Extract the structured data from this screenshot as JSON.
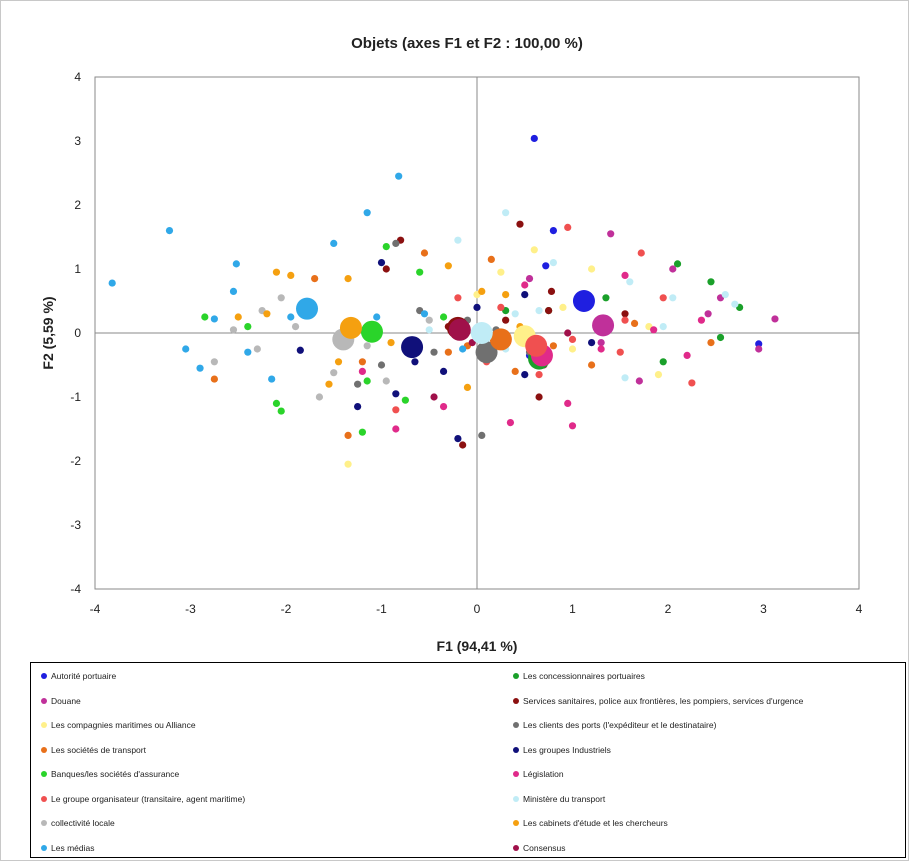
{
  "chart_data": {
    "type": "scatter",
    "title": "Objets (axes F1 et F2 : 100,00 %)",
    "xlabel": "F1 (94,41 %)",
    "ylabel": "F2 (5,59 %)",
    "xlim": [
      -4,
      4
    ],
    "ylim": [
      -4,
      4
    ],
    "xticks": [
      "-4",
      "-3",
      "-2",
      "-1",
      "0",
      "1",
      "2",
      "3",
      "4"
    ],
    "yticks": [
      "4",
      "3",
      "2",
      "1",
      "0",
      "-1",
      "-2",
      "-3",
      "-4"
    ],
    "grid": false,
    "legend_position": "bottom",
    "series": [
      {
        "name": "Autorité portuaire",
        "color": "#1f1fe0",
        "centroid": [
          1.12,
          0.5
        ],
        "points": [
          [
            0.6,
            3.04
          ],
          [
            0.8,
            1.6
          ],
          [
            0.72,
            1.05
          ],
          [
            2.95,
            -0.17
          ],
          [
            0.55,
            -0.35
          ]
        ]
      },
      {
        "name": "Les concessionnaires portuaires",
        "color": "#1aa02a",
        "centroid": [
          0.65,
          -0.4
        ],
        "points": [
          [
            2.1,
            1.08
          ],
          [
            2.45,
            0.8
          ],
          [
            1.95,
            -0.45
          ],
          [
            2.55,
            -0.07
          ],
          [
            1.35,
            0.55
          ],
          [
            0.65,
            -0.45
          ],
          [
            0.3,
            0.35
          ],
          [
            2.75,
            0.4
          ],
          [
            0.75,
            0.35
          ]
        ]
      },
      {
        "name": "Douane",
        "color": "#c0309a",
        "centroid": [
          1.32,
          0.12
        ],
        "points": [
          [
            3.12,
            0.22
          ],
          [
            2.95,
            -0.25
          ],
          [
            1.4,
            1.55
          ],
          [
            2.55,
            0.55
          ],
          [
            1.3,
            -0.15
          ],
          [
            2.42,
            0.3
          ],
          [
            0.55,
            0.85
          ],
          [
            2.05,
            1.0
          ],
          [
            1.7,
            -0.75
          ]
        ]
      },
      {
        "name": "Services sanitaires, police aux frontières, les pompiers, services d'urgence",
        "color": "#8b1010",
        "centroid": [
          -0.2,
          0.08
        ],
        "points": [
          [
            -0.8,
            1.45
          ],
          [
            0.45,
            1.7
          ],
          [
            -0.95,
            1.0
          ],
          [
            -0.3,
            0.1
          ],
          [
            0.78,
            0.65
          ],
          [
            0.3,
            0.2
          ],
          [
            -0.15,
            -1.75
          ],
          [
            0.65,
            -1.0
          ],
          [
            0.75,
            0.35
          ],
          [
            1.55,
            0.3
          ]
        ]
      },
      {
        "name": "Les compagnies maritimes ou Alliance",
        "color": "#fff08a",
        "centroid": [
          0.5,
          -0.05
        ],
        "points": [
          [
            -1.35,
            -2.05
          ],
          [
            0.6,
            1.3
          ],
          [
            0.25,
            0.95
          ],
          [
            1.2,
            1.0
          ],
          [
            1.8,
            0.1
          ],
          [
            0.9,
            0.4
          ],
          [
            1.0,
            -0.25
          ],
          [
            1.9,
            -0.65
          ],
          [
            0.0,
            0.6
          ]
        ]
      },
      {
        "name": "Les clients des ports (l'expéditeur et le destinataire)",
        "color": "#707070",
        "centroid": [
          0.1,
          -0.3
        ],
        "points": [
          [
            -0.85,
            1.4
          ],
          [
            0.05,
            -1.6
          ],
          [
            -1.25,
            -0.8
          ],
          [
            -0.45,
            -0.3
          ],
          [
            0.2,
            0.05
          ],
          [
            -0.1,
            0.2
          ],
          [
            -1.0,
            -0.5
          ],
          [
            0.55,
            -0.3
          ],
          [
            -0.6,
            0.35
          ]
        ]
      },
      {
        "name": "Les sociétés de transport",
        "color": "#e8701a",
        "centroid": [
          0.25,
          -0.1
        ],
        "points": [
          [
            -2.75,
            -0.72
          ],
          [
            -1.35,
            -1.6
          ],
          [
            -1.2,
            -0.45
          ],
          [
            -0.55,
            1.25
          ],
          [
            0.15,
            1.15
          ],
          [
            0.4,
            -0.6
          ],
          [
            1.2,
            -0.5
          ],
          [
            -0.3,
            -0.3
          ],
          [
            0.8,
            -0.2
          ],
          [
            2.45,
            -0.15
          ],
          [
            -1.7,
            0.85
          ],
          [
            -0.1,
            -0.2
          ],
          [
            1.65,
            0.15
          ]
        ]
      },
      {
        "name": "Les groupes Industriels",
        "color": "#10107a",
        "centroid": [
          -0.68,
          -0.22
        ],
        "points": [
          [
            -1.0,
            1.1
          ],
          [
            -0.2,
            -1.65
          ],
          [
            -0.65,
            -0.45
          ],
          [
            -0.35,
            -0.6
          ],
          [
            0.5,
            0.6
          ],
          [
            0.5,
            -0.65
          ],
          [
            -1.85,
            -0.27
          ],
          [
            -0.85,
            -0.95
          ],
          [
            0.0,
            0.4
          ],
          [
            1.2,
            -0.15
          ],
          [
            -1.25,
            -1.15
          ]
        ]
      },
      {
        "name": "Banques/les sociétés d'assurance",
        "color": "#2ad42a",
        "centroid": [
          -1.1,
          0.02
        ],
        "points": [
          [
            -0.95,
            1.35
          ],
          [
            -2.05,
            -1.22
          ],
          [
            -2.1,
            -1.1
          ],
          [
            -0.6,
            0.95
          ],
          [
            -1.75,
            0.35
          ],
          [
            -1.15,
            -0.75
          ],
          [
            -0.75,
            -1.05
          ],
          [
            -2.4,
            0.1
          ],
          [
            -1.2,
            -1.55
          ],
          [
            -0.35,
            0.25
          ],
          [
            -2.85,
            0.25
          ]
        ]
      },
      {
        "name": "Législation",
        "color": "#e02a8a",
        "centroid": [
          0.68,
          -0.35
        ],
        "points": [
          [
            1.3,
            -0.25
          ],
          [
            0.95,
            -1.1
          ],
          [
            2.2,
            -0.35
          ],
          [
            1.55,
            0.9
          ],
          [
            0.5,
            0.75
          ],
          [
            -0.35,
            -1.15
          ],
          [
            0.35,
            -1.4
          ],
          [
            -0.85,
            -1.5
          ],
          [
            1.0,
            -1.45
          ],
          [
            2.35,
            0.2
          ],
          [
            1.85,
            0.05
          ],
          [
            -1.2,
            -0.6
          ]
        ]
      },
      {
        "name": "Le groupe organisateur (transitaire, agent maritime)",
        "color": "#f05050",
        "centroid": [
          0.62,
          -0.2
        ],
        "points": [
          [
            0.95,
            1.65
          ],
          [
            1.72,
            1.25
          ],
          [
            1.0,
            -0.1
          ],
          [
            -0.2,
            0.55
          ],
          [
            2.25,
            -0.78
          ],
          [
            1.55,
            0.2
          ],
          [
            0.65,
            -0.65
          ],
          [
            0.1,
            -0.45
          ],
          [
            -0.85,
            -1.2
          ],
          [
            1.5,
            -0.3
          ],
          [
            0.25,
            0.4
          ],
          [
            1.95,
            0.55
          ]
        ]
      },
      {
        "name": "Ministère du transport",
        "color": "#c0ecf6",
        "centroid": [
          0.05,
          0.0
        ],
        "points": [
          [
            0.3,
            1.88
          ],
          [
            0.8,
            1.1
          ],
          [
            1.6,
            0.8
          ],
          [
            2.05,
            0.55
          ],
          [
            2.7,
            0.45
          ],
          [
            1.55,
            -0.7
          ],
          [
            0.4,
            0.3
          ],
          [
            -0.2,
            1.45
          ],
          [
            0.3,
            -0.25
          ],
          [
            1.95,
            0.1
          ],
          [
            0.65,
            0.35
          ],
          [
            -0.5,
            0.05
          ],
          [
            2.6,
            0.6
          ]
        ]
      },
      {
        "name": "collectivité locale",
        "color": "#b8b8b8",
        "centroid": [
          -1.4,
          -0.1
        ],
        "points": [
          [
            -2.75,
            -0.45
          ],
          [
            -1.65,
            -1.0
          ],
          [
            -1.5,
            -0.62
          ],
          [
            -2.25,
            0.35
          ],
          [
            -0.95,
            -0.75
          ],
          [
            -2.55,
            0.05
          ],
          [
            -1.15,
            -0.2
          ],
          [
            -2.3,
            -0.25
          ],
          [
            -0.5,
            0.2
          ],
          [
            -2.05,
            0.55
          ],
          [
            -1.9,
            0.1
          ]
        ]
      },
      {
        "name": "Les cabinets d'étude et les chercheurs",
        "color": "#f5a010",
        "centroid": [
          -1.32,
          0.08
        ],
        "points": [
          [
            -2.1,
            0.95
          ],
          [
            -1.95,
            0.9
          ],
          [
            -1.45,
            -0.45
          ],
          [
            -0.9,
            -0.15
          ],
          [
            -0.3,
            1.05
          ],
          [
            0.05,
            0.65
          ],
          [
            0.3,
            0.6
          ],
          [
            -2.2,
            0.3
          ],
          [
            -1.55,
            -0.8
          ],
          [
            -0.1,
            -0.85
          ],
          [
            0.45,
            0.1
          ],
          [
            -2.5,
            0.25
          ],
          [
            -1.35,
            0.85
          ]
        ]
      },
      {
        "name": "Les médias",
        "color": "#30a8e8",
        "centroid": [
          -1.78,
          0.38
        ],
        "points": [
          [
            -3.82,
            0.78
          ],
          [
            -3.22,
            1.6
          ],
          [
            -2.52,
            1.08
          ],
          [
            -2.9,
            -0.55
          ],
          [
            -3.05,
            -0.25
          ],
          [
            -1.95,
            0.25
          ],
          [
            -1.15,
            1.88
          ],
          [
            -0.82,
            2.45
          ],
          [
            -2.55,
            0.65
          ],
          [
            -1.5,
            1.4
          ],
          [
            -2.15,
            -0.72
          ],
          [
            -2.75,
            0.22
          ],
          [
            -0.55,
            0.3
          ],
          [
            -1.05,
            0.25
          ],
          [
            -2.4,
            -0.3
          ],
          [
            -0.15,
            -0.25
          ]
        ]
      },
      {
        "name": "Consensus",
        "color": "#a0104a",
        "centroid": [
          -0.18,
          0.05
        ],
        "points": [
          [
            1.3,
            0.1
          ],
          [
            -0.05,
            -0.15
          ],
          [
            0.95,
            0.0
          ],
          [
            -0.2,
            0.15
          ],
          [
            0.7,
            -0.5
          ],
          [
            -0.45,
            -1.0
          ]
        ]
      }
    ]
  }
}
